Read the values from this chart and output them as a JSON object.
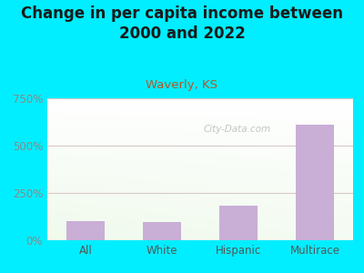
{
  "title": "Change in per capita income between\n2000 and 2022",
  "subtitle": "Waverly, KS",
  "categories": [
    "All",
    "White",
    "Hispanic",
    "Multirace"
  ],
  "values": [
    100,
    95,
    185,
    610
  ],
  "bar_color": "#c9aed6",
  "title_color": "#1a1a1a",
  "subtitle_color": "#b05a2a",
  "ytick_color": "#888888",
  "xtick_color": "#555555",
  "background_outer": "#00eeff",
  "grid_color": "#d8c8c8",
  "ylim": [
    0,
    750
  ],
  "yticks": [
    0,
    250,
    500,
    750
  ],
  "ytick_labels": [
    "0%",
    "250%",
    "500%",
    "750%"
  ],
  "watermark": "City-Data.com",
  "title_fontsize": 12,
  "subtitle_fontsize": 9.5,
  "tick_fontsize": 8.5,
  "bar_width": 0.5
}
